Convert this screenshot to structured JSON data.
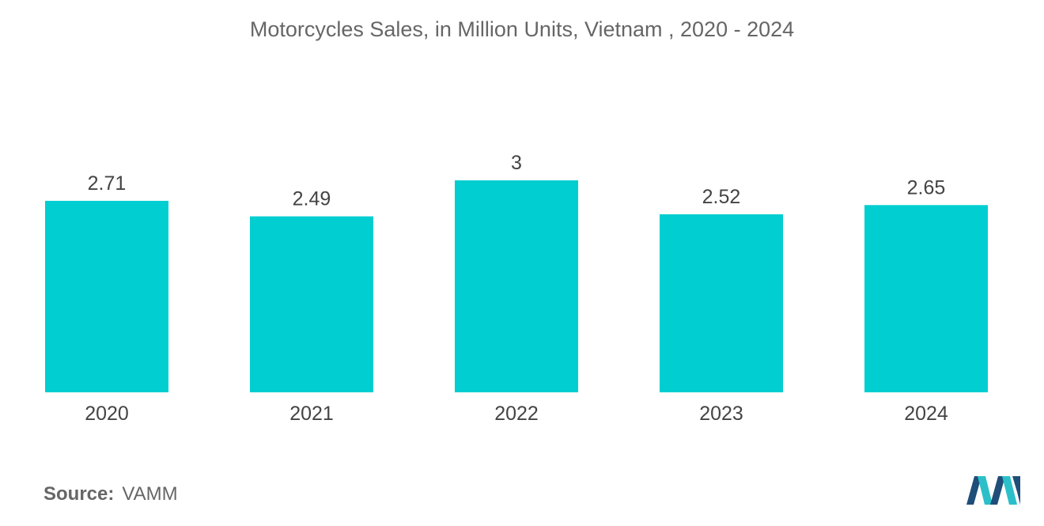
{
  "chart_data": {
    "type": "bar",
    "title": "Motorcycles Sales, in Million Units, Vietnam , 2020 - 2024",
    "categories": [
      "2020",
      "2021",
      "2022",
      "2023",
      "2024"
    ],
    "values": [
      2.71,
      2.49,
      3,
      2.52,
      2.65
    ],
    "value_labels": [
      "2.71",
      "2.49",
      "3",
      "2.52",
      "2.65"
    ],
    "xlabel": "",
    "ylabel": "",
    "ylim": [
      0,
      3
    ],
    "grid": false,
    "legend": "none",
    "bar_color": "#00CED1"
  },
  "source": {
    "label": "Source:",
    "value": "VAMM"
  },
  "logo": {
    "name": "mordor-intelligence-logo-icon",
    "color_dark": "#1F4E79",
    "color_light": "#2BBFC9"
  }
}
